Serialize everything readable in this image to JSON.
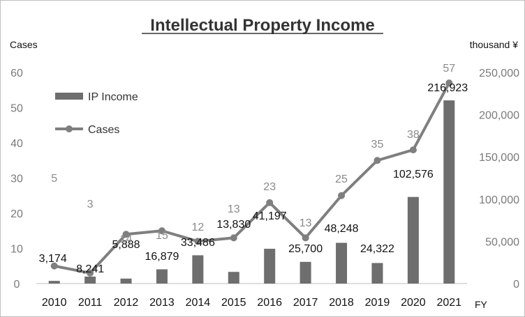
{
  "chart_data": {
    "type": "bar",
    "title": "Intellectual Property Income",
    "left_axis_unit": "Cases",
    "right_axis_unit": "thousand ¥",
    "x_axis_unit": "FY",
    "categories": [
      "2010",
      "2011",
      "2012",
      "2013",
      "2014",
      "2015",
      "2016",
      "2017",
      "2018",
      "2019",
      "2020",
      "2021"
    ],
    "left_ticks": [
      "0",
      "10",
      "20",
      "30",
      "40",
      "50",
      "60"
    ],
    "right_ticks": [
      "0",
      "50,000",
      "100,000",
      "150,000",
      "200,000",
      "250,000"
    ],
    "left_range": [
      0,
      60
    ],
    "right_range": [
      0,
      250000
    ],
    "grid": false,
    "legend_position": "top-left",
    "series": [
      {
        "name": "IP Income",
        "type": "bar",
        "axis": "right",
        "color": "#6e6e6e",
        "values": [
          3174,
          8241,
          5888,
          16879,
          33486,
          13830,
          41197,
          25700,
          48248,
          24322,
          102576,
          216923
        ],
        "labels": [
          "3,174",
          "8,241",
          "5,888",
          "16,879",
          "33,486",
          "13,830",
          "41,197",
          "25,700",
          "48,248",
          "24,322",
          "102,576",
          "216,923"
        ]
      },
      {
        "name": "Cases",
        "type": "line",
        "axis": "left",
        "color": "#7f7f7f",
        "values": [
          5,
          3,
          14,
          15,
          12,
          13,
          23,
          13,
          25,
          35,
          38,
          57
        ],
        "labels": [
          "5",
          "3",
          "14",
          "15",
          "12",
          "13",
          "23",
          "13",
          "25",
          "35",
          "38",
          "57"
        ]
      }
    ]
  }
}
